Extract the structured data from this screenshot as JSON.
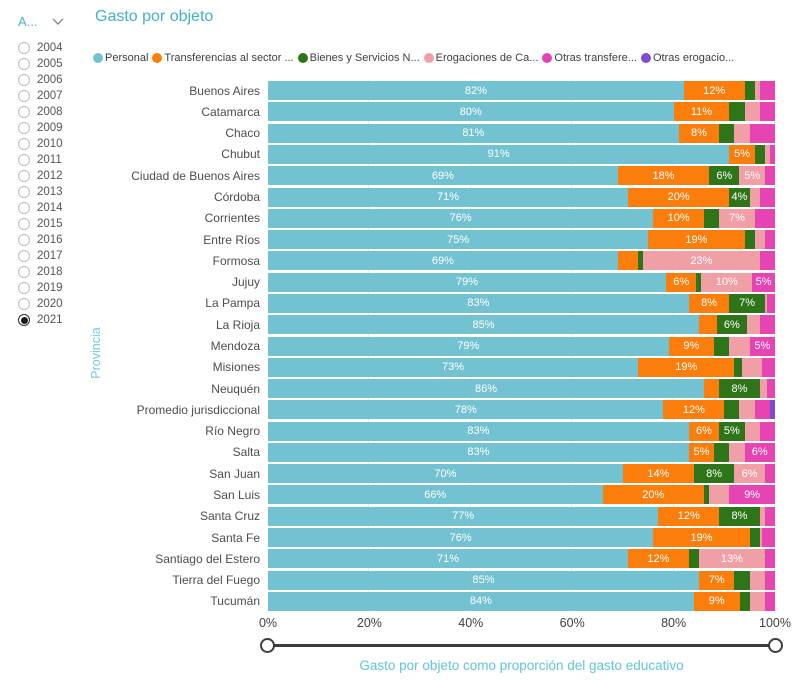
{
  "app": {
    "title": "Gasto por objeto",
    "year_filter": {
      "label": "A...",
      "years": [
        "2004",
        "2005",
        "2006",
        "2007",
        "2008",
        "2009",
        "2010",
        "2011",
        "2012",
        "2013",
        "2014",
        "2015",
        "2016",
        "2017",
        "2018",
        "2019",
        "2020",
        "2021"
      ],
      "selected": "2021"
    }
  },
  "chart_data": {
    "type": "bar",
    "orientation": "horizontal",
    "stacked": true,
    "title": "Gasto por objeto",
    "xlabel": "Gasto por objeto como proporción del gasto educativo",
    "ylabel": "Provincia",
    "xlim": [
      0,
      100
    ],
    "x_tick_labels": [
      "0%",
      "20%",
      "40%",
      "60%",
      "80%",
      "100%"
    ],
    "x_tick_positions": [
      0,
      20,
      40,
      60,
      80,
      100
    ],
    "legend_position": "top",
    "grid": "vertical-light",
    "series_names": [
      "Personal",
      "Transferencias al sector ...",
      "Bienes y Servicios N...",
      "Erogaciones de Ca...",
      "Otras transfere...",
      "Otras erogacio..."
    ],
    "series_colors": [
      "#73c2d2",
      "#fb7e0d",
      "#2e7519",
      "#ef9fa5",
      "#e643b3",
      "#7e4bce"
    ],
    "rows": [
      {
        "category": "Buenos Aires",
        "values": [
          82,
          12,
          2,
          1,
          3,
          0
        ],
        "labels": [
          "82%",
          "12%",
          "",
          "",
          "",
          ""
        ]
      },
      {
        "category": "Catamarca",
        "values": [
          80,
          11,
          3,
          3,
          3,
          0
        ],
        "labels": [
          "80%",
          "11%",
          "",
          "",
          "",
          ""
        ]
      },
      {
        "category": "Chaco",
        "values": [
          81,
          8,
          3,
          3,
          5,
          0
        ],
        "labels": [
          "81%",
          "8%",
          "",
          "",
          "",
          ""
        ]
      },
      {
        "category": "Chubut",
        "values": [
          91,
          5,
          2,
          1,
          1,
          0
        ],
        "labels": [
          "91%",
          "5%",
          "",
          "",
          "",
          ""
        ]
      },
      {
        "category": "Ciudad de Buenos Aires",
        "values": [
          69,
          18,
          6,
          5,
          2,
          0
        ],
        "labels": [
          "69%",
          "18%",
          "6%",
          "5%",
          "",
          ""
        ]
      },
      {
        "category": "Córdoba",
        "values": [
          71,
          20,
          4,
          2,
          3,
          0
        ],
        "labels": [
          "71%",
          "20%",
          "4%",
          "",
          "",
          ""
        ]
      },
      {
        "category": "Corrientes",
        "values": [
          76,
          10,
          3,
          7,
          4,
          0
        ],
        "labels": [
          "76%",
          "10%",
          "",
          "7%",
          "",
          ""
        ]
      },
      {
        "category": "Entre Ríos",
        "values": [
          75,
          19,
          2,
          2,
          2,
          0
        ],
        "labels": [
          "75%",
          "19%",
          "",
          "",
          "",
          ""
        ]
      },
      {
        "category": "Formosa",
        "values": [
          69,
          4,
          1,
          23,
          3,
          0
        ],
        "labels": [
          "69%",
          "",
          "",
          "23%",
          "",
          ""
        ]
      },
      {
        "category": "Jujuy",
        "values": [
          78.5,
          6,
          1,
          10,
          4.5,
          0
        ],
        "labels": [
          "79%",
          "6%",
          "",
          "10%",
          "5%",
          ""
        ]
      },
      {
        "category": "La Pampa",
        "values": [
          83,
          8,
          7,
          0.5,
          1.5,
          0
        ],
        "labels": [
          "83%",
          "8%",
          "7%",
          "",
          "",
          ""
        ]
      },
      {
        "category": "La Rioja",
        "values": [
          85,
          3.5,
          6,
          2.5,
          3,
          0
        ],
        "labels": [
          "85%",
          "",
          "6%",
          "",
          "",
          ""
        ]
      },
      {
        "category": "Mendoza",
        "values": [
          79,
          9,
          3,
          4,
          5,
          0
        ],
        "labels": [
          "79%",
          "9%",
          "",
          "",
          "5%",
          ""
        ]
      },
      {
        "category": "Misiones",
        "values": [
          73,
          19,
          1.5,
          4,
          2.5,
          0
        ],
        "labels": [
          "73%",
          "19%",
          "",
          "",
          "",
          ""
        ]
      },
      {
        "category": "Neuquén",
        "values": [
          86,
          3,
          8,
          1.5,
          1.5,
          0
        ],
        "labels": [
          "86%",
          "",
          "8%",
          "",
          "",
          ""
        ]
      },
      {
        "category": "Promedio jurisdiccional",
        "values": [
          78,
          12,
          3,
          3,
          3,
          1
        ],
        "labels": [
          "78%",
          "12%",
          "",
          "",
          "",
          ""
        ]
      },
      {
        "category": "Río Negro",
        "values": [
          83,
          6,
          5,
          3,
          3,
          0
        ],
        "labels": [
          "83%",
          "6%",
          "5%",
          "",
          "",
          ""
        ]
      },
      {
        "category": "Salta",
        "values": [
          83,
          5,
          3,
          3,
          6,
          0
        ],
        "labels": [
          "83%",
          "5%",
          "",
          "",
          "6%",
          ""
        ]
      },
      {
        "category": "San Juan",
        "values": [
          70,
          14,
          8,
          6,
          2,
          0
        ],
        "labels": [
          "70%",
          "14%",
          "8%",
          "6%",
          "",
          ""
        ]
      },
      {
        "category": "San Luis",
        "values": [
          66,
          20,
          1,
          4,
          9,
          0
        ],
        "labels": [
          "66%",
          "20%",
          "",
          "",
          "9%",
          ""
        ]
      },
      {
        "category": "Santa Cruz",
        "values": [
          77,
          12,
          8,
          1,
          2,
          0
        ],
        "labels": [
          "77%",
          "12%",
          "8%",
          "",
          "",
          ""
        ]
      },
      {
        "category": "Santa Fe",
        "values": [
          76,
          19,
          2,
          0.5,
          2.5,
          0
        ],
        "labels": [
          "76%",
          "19%",
          "",
          "",
          "",
          ""
        ]
      },
      {
        "category": "Santiago del Estero",
        "values": [
          71,
          12,
          2,
          13,
          2,
          0
        ],
        "labels": [
          "71%",
          "12%",
          "",
          "13%",
          "",
          ""
        ]
      },
      {
        "category": "Tierra del Fuego",
        "values": [
          85,
          7,
          3,
          3,
          2,
          0
        ],
        "labels": [
          "85%",
          "7%",
          "",
          "",
          "",
          ""
        ]
      },
      {
        "category": "Tucumán",
        "values": [
          84,
          9,
          2,
          3,
          2,
          0
        ],
        "labels": [
          "84%",
          "9%",
          "",
          "",
          "",
          ""
        ]
      }
    ]
  }
}
